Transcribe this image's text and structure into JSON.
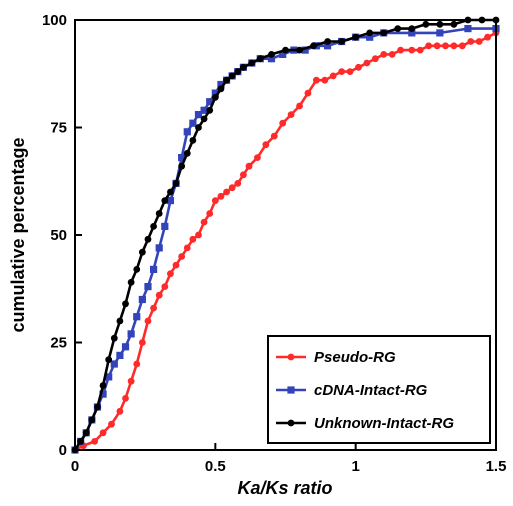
{
  "chart_data": {
    "type": "line",
    "title": "",
    "xlabel": "Ka/Ks ratio",
    "ylabel": "cumulative percentage",
    "xlim": [
      0,
      1.5
    ],
    "ylim": [
      0,
      100
    ],
    "xticks": [
      0,
      0.5,
      1,
      1.5
    ],
    "yticks": [
      0,
      25,
      50,
      75,
      100
    ],
    "xtick_labels": [
      "0",
      "0.5",
      "1",
      "1.5"
    ],
    "ytick_labels": [
      "0",
      "25",
      "50",
      "75",
      "100"
    ],
    "grid": false,
    "legend_position": "bottom-right",
    "series": [
      {
        "name": "Pseudo-RG",
        "color": "#ff2a2a",
        "marker": "circle",
        "x": [
          0,
          0.03,
          0.07,
          0.1,
          0.13,
          0.16,
          0.18,
          0.2,
          0.22,
          0.24,
          0.26,
          0.28,
          0.3,
          0.32,
          0.34,
          0.36,
          0.38,
          0.4,
          0.42,
          0.44,
          0.46,
          0.48,
          0.5,
          0.52,
          0.54,
          0.56,
          0.58,
          0.6,
          0.62,
          0.65,
          0.68,
          0.71,
          0.74,
          0.77,
          0.8,
          0.83,
          0.86,
          0.89,
          0.92,
          0.95,
          0.98,
          1.01,
          1.04,
          1.07,
          1.1,
          1.13,
          1.16,
          1.2,
          1.23,
          1.26,
          1.29,
          1.32,
          1.35,
          1.38,
          1.41,
          1.44,
          1.47,
          1.5
        ],
        "y": [
          0,
          1,
          2,
          4,
          6,
          9,
          12,
          16,
          20,
          25,
          30,
          33,
          36,
          38,
          41,
          43,
          45,
          47,
          49,
          50,
          53,
          55,
          58,
          59,
          60,
          61,
          62,
          64,
          66,
          68,
          71,
          73,
          76,
          78,
          80,
          83,
          86,
          86,
          87,
          88,
          88,
          89,
          90,
          91,
          92,
          92,
          93,
          93,
          93,
          94,
          94,
          94,
          94,
          94,
          95,
          95,
          96,
          97
        ]
      },
      {
        "name": "cDNA-Intact-RG",
        "color": "#3344bb",
        "marker": "square",
        "x": [
          0,
          0.02,
          0.04,
          0.06,
          0.08,
          0.1,
          0.12,
          0.14,
          0.16,
          0.18,
          0.2,
          0.22,
          0.24,
          0.26,
          0.28,
          0.3,
          0.32,
          0.34,
          0.36,
          0.38,
          0.4,
          0.42,
          0.44,
          0.46,
          0.48,
          0.5,
          0.52,
          0.54,
          0.56,
          0.58,
          0.6,
          0.63,
          0.66,
          0.7,
          0.74,
          0.78,
          0.82,
          0.86,
          0.9,
          0.95,
          1.0,
          1.05,
          1.1,
          1.2,
          1.3,
          1.4,
          1.5
        ],
        "y": [
          0,
          2,
          4,
          7,
          10,
          13,
          17,
          20,
          22,
          24,
          27,
          31,
          35,
          38,
          42,
          47,
          52,
          58,
          62,
          68,
          74,
          76,
          78,
          79,
          81,
          83,
          85,
          86,
          87,
          88,
          89,
          90,
          91,
          91,
          92,
          93,
          93,
          94,
          94,
          95,
          96,
          96,
          97,
          97,
          97,
          98,
          98
        ]
      },
      {
        "name": "Unknown-Intact-RG",
        "color": "#000000",
        "marker": "circle",
        "x": [
          0,
          0.02,
          0.04,
          0.06,
          0.08,
          0.1,
          0.12,
          0.14,
          0.16,
          0.18,
          0.2,
          0.22,
          0.24,
          0.26,
          0.28,
          0.3,
          0.32,
          0.34,
          0.36,
          0.38,
          0.4,
          0.42,
          0.44,
          0.46,
          0.48,
          0.5,
          0.52,
          0.54,
          0.56,
          0.58,
          0.6,
          0.63,
          0.66,
          0.7,
          0.75,
          0.8,
          0.85,
          0.9,
          0.95,
          1.0,
          1.05,
          1.1,
          1.15,
          1.2,
          1.25,
          1.3,
          1.35,
          1.4,
          1.45,
          1.5
        ],
        "y": [
          0,
          2,
          4,
          7,
          10,
          15,
          21,
          26,
          30,
          34,
          39,
          42,
          46,
          49,
          52,
          55,
          58,
          60,
          62,
          66,
          69,
          72,
          75,
          77,
          79,
          82,
          84,
          86,
          87,
          88,
          89,
          90,
          91,
          92,
          93,
          93,
          94,
          95,
          95,
          96,
          97,
          97,
          98,
          98,
          99,
          99,
          99,
          100,
          100,
          100
        ]
      }
    ]
  }
}
